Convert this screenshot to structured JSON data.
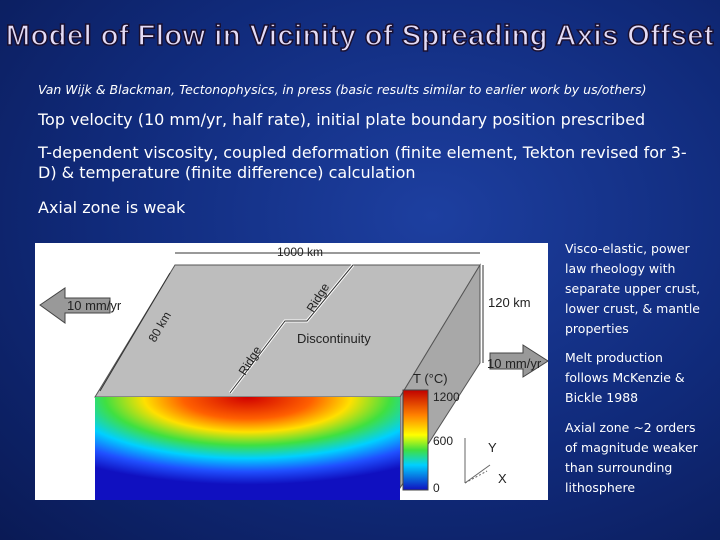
{
  "title": "Model of Flow in Vicinity of Spreading Axis Offset",
  "citation": "Van Wijk & Blackman, Tectonophysics, in press (basic results similar to earlier work by us/others)",
  "bullets": [
    "Top velocity (10 mm/yr, half rate), initial plate boundary position prescribed",
    "T-dependent viscosity, coupled deformation (finite element, Tekton revised for 3-D) & temperature (finite difference) calculation",
    "Axial zone is weak"
  ],
  "figure": {
    "labels": {
      "width": "1000 km",
      "velocity_left": "10 mm/yr",
      "velocity_right": "10 mm/yr",
      "depth": "120 km",
      "length": "80 km",
      "ridge_upper": "Ridge",
      "ridge_lower": "Ridge",
      "offset": "Discontinuity",
      "colorbar_title": "T (°C)",
      "axis_y": "Y",
      "axis_x": "X"
    },
    "colorbar_ticks": [
      1200,
      600,
      0
    ]
  },
  "notes": [
    "Visco-elastic, power law rheology with separate upper crust, lower crust, & mantle properties",
    "Melt production follows McKenzie & Bickle 1988",
    "Axial zone ~2 orders of magnitude weaker than surrounding lithosphere"
  ]
}
